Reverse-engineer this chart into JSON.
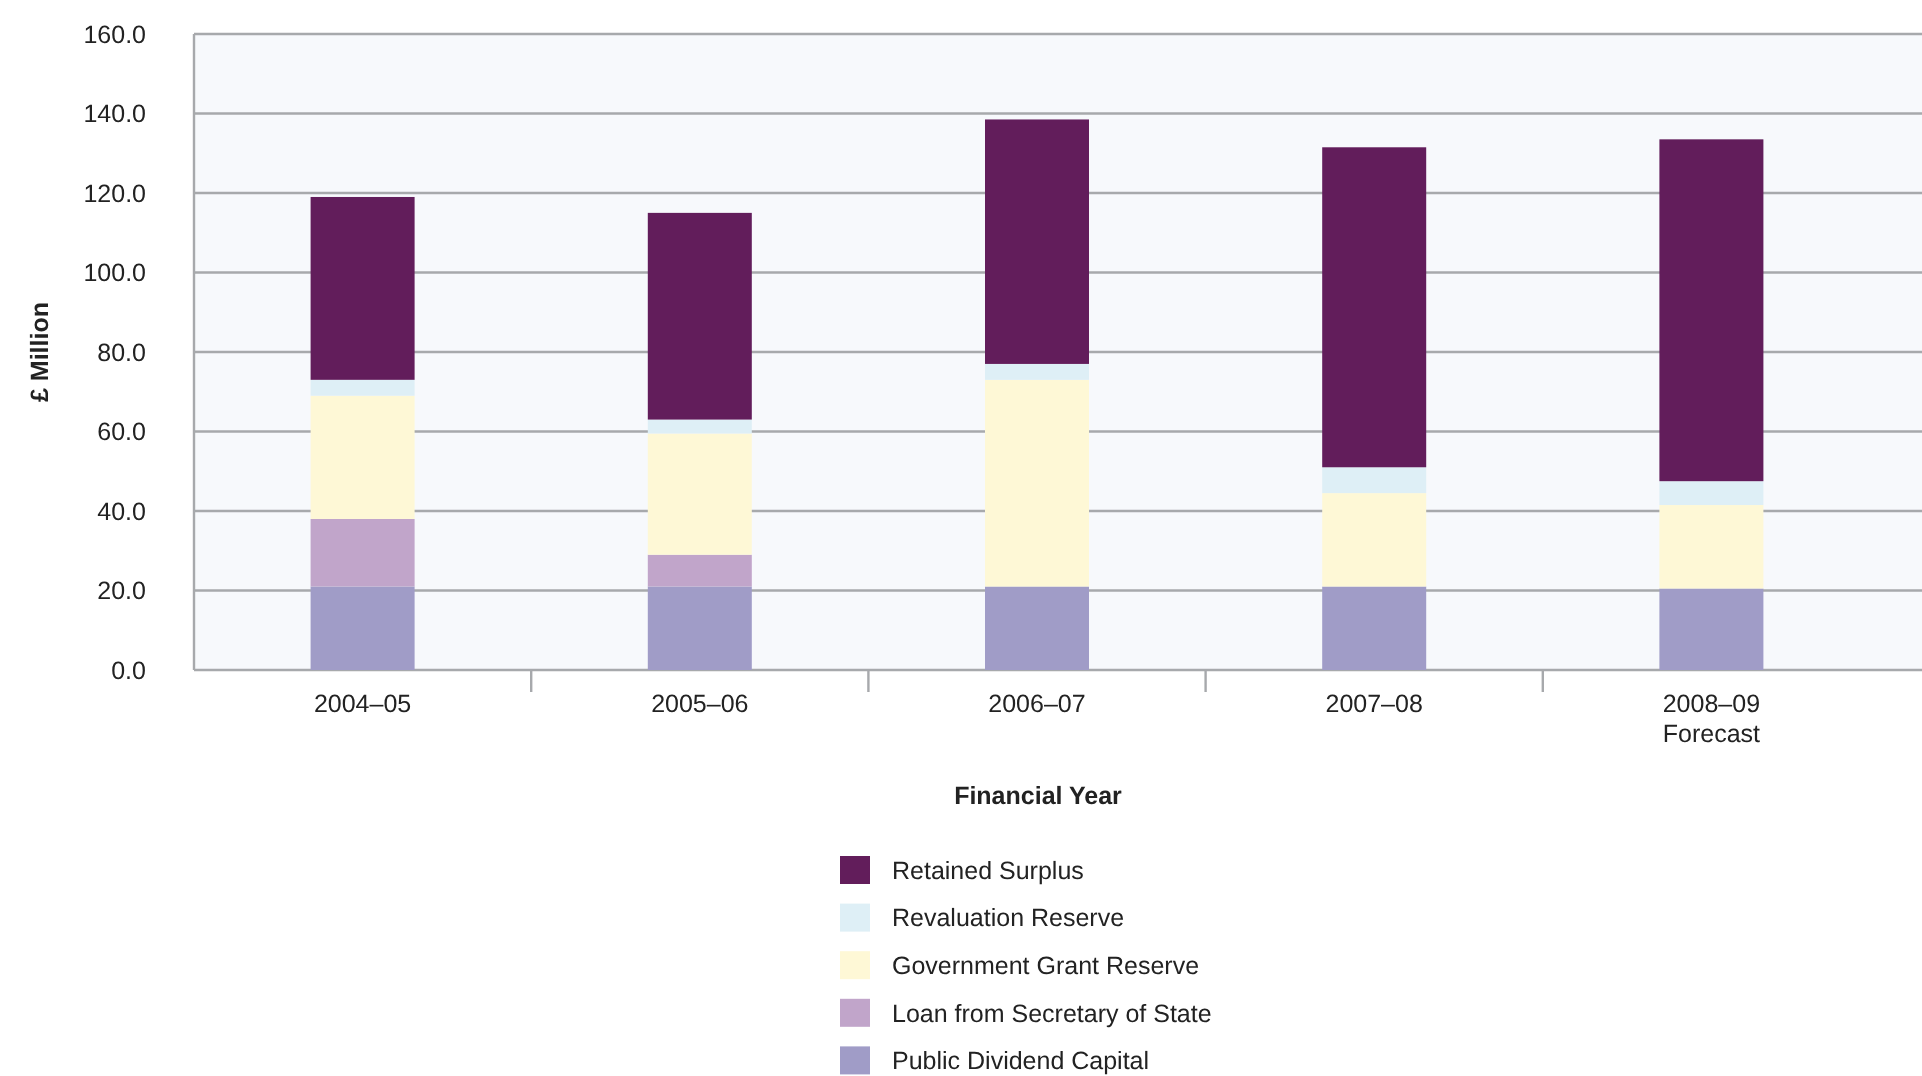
{
  "chart_data": {
    "type": "bar",
    "stacked": true,
    "xlabel": "Financial Year",
    "ylabel": "£ Million",
    "categories": [
      "2004–05",
      "2005–06",
      "2006–07",
      "2007–08",
      "2008–09\nForecast"
    ],
    "series": [
      {
        "name": "Public Dividend Capital",
        "color": "#a09cc7",
        "values": [
          21,
          21,
          21,
          21,
          20.5
        ]
      },
      {
        "name": "Loan from Secretary of State",
        "color": "#c1a5ca",
        "values": [
          17,
          8,
          null,
          null,
          null
        ]
      },
      {
        "name": "Government Grant Reserve",
        "color": "#fef8d6",
        "values": [
          31,
          30.5,
          52,
          23.5,
          21
        ]
      },
      {
        "name": "Revaluation Reserve",
        "color": "#deeff6",
        "values": [
          4,
          3.5,
          4,
          6.5,
          6
        ]
      },
      {
        "name": "Retained Surplus",
        "color": "#621d5b",
        "values": [
          46,
          52,
          61.5,
          80.5,
          86
        ]
      }
    ],
    "ylim": [
      0,
      160
    ],
    "yticks": [
      {
        "value": 0,
        "label": "0.0"
      },
      {
        "value": 20,
        "label": "20.0"
      },
      {
        "value": 40,
        "label": "40.0"
      },
      {
        "value": 60,
        "label": "60.0"
      },
      {
        "value": 80,
        "label": "80.0"
      },
      {
        "value": 100,
        "label": "100.0"
      },
      {
        "value": 120,
        "label": "120.0"
      },
      {
        "value": 140,
        "label": "140.0"
      },
      {
        "value": 160,
        "label": "160.0"
      }
    ],
    "grid": "y",
    "legend": "bottom"
  }
}
